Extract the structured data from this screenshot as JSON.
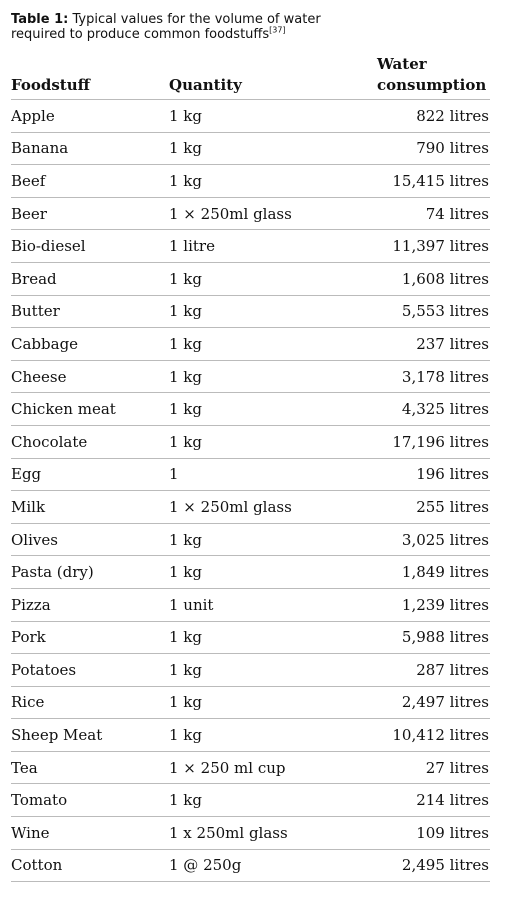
{
  "caption": {
    "label": "Table 1:",
    "text": "Typical values for the volume of water required to produce common foodstuffs",
    "ref": "[37]"
  },
  "columns": {
    "foodstuff": "Foodstuff",
    "quantity": "Quantity",
    "water_line1": "Water",
    "water_line2": "consumption"
  },
  "rows": [
    {
      "food": "Apple",
      "quantity": "1 kg",
      "water": "822 litres"
    },
    {
      "food": "Banana",
      "quantity": "1 kg",
      "water": "790 litres"
    },
    {
      "food": "Beef",
      "quantity": "1 kg",
      "water": "15,415 litres"
    },
    {
      "food": "Beer",
      "quantity": "1 × 250ml glass",
      "water": "74 litres"
    },
    {
      "food": "Bio-diesel",
      "quantity": "1 litre",
      "water": "11,397 litres"
    },
    {
      "food": "Bread",
      "quantity": "1 kg",
      "water": "1,608 litres"
    },
    {
      "food": "Butter",
      "quantity": "1 kg",
      "water": "5,553 litres"
    },
    {
      "food": "Cabbage",
      "quantity": "1 kg",
      "water": "237 litres"
    },
    {
      "food": "Cheese",
      "quantity": "1 kg",
      "water": "3,178 litres"
    },
    {
      "food": "Chicken meat",
      "quantity": "1 kg",
      "water": "4,325 litres"
    },
    {
      "food": "Chocolate",
      "quantity": "1 kg",
      "water": "17,196 litres"
    },
    {
      "food": "Egg",
      "quantity": "1",
      "water": "196 litres"
    },
    {
      "food": "Milk",
      "quantity": "1 × 250ml glass",
      "water": "255 litres"
    },
    {
      "food": "Olives",
      "quantity": "1 kg",
      "water": "3,025 litres"
    },
    {
      "food": "Pasta (dry)",
      "quantity": "1 kg",
      "water": "1,849 litres"
    },
    {
      "food": "Pizza",
      "quantity": "1 unit",
      "water": "1,239 litres"
    },
    {
      "food": "Pork",
      "quantity": "1 kg",
      "water": "5,988 litres"
    },
    {
      "food": "Potatoes",
      "quantity": "1 kg",
      "water": "287 litres"
    },
    {
      "food": "Rice",
      "quantity": "1 kg",
      "water": "2,497 litres"
    },
    {
      "food": "Sheep Meat",
      "quantity": "1 kg",
      "water": "10,412 litres"
    },
    {
      "food": "Tea",
      "quantity": "1 × 250 ml cup",
      "water": "27 litres"
    },
    {
      "food": "Tomato",
      "quantity": "1 kg",
      "water": "214 litres"
    },
    {
      "food": "Wine",
      "quantity": "1 x 250ml glass",
      "water": "109 litres"
    },
    {
      "food": "Cotton",
      "quantity": "1 @ 250g",
      "water": "2,495 litres"
    }
  ]
}
